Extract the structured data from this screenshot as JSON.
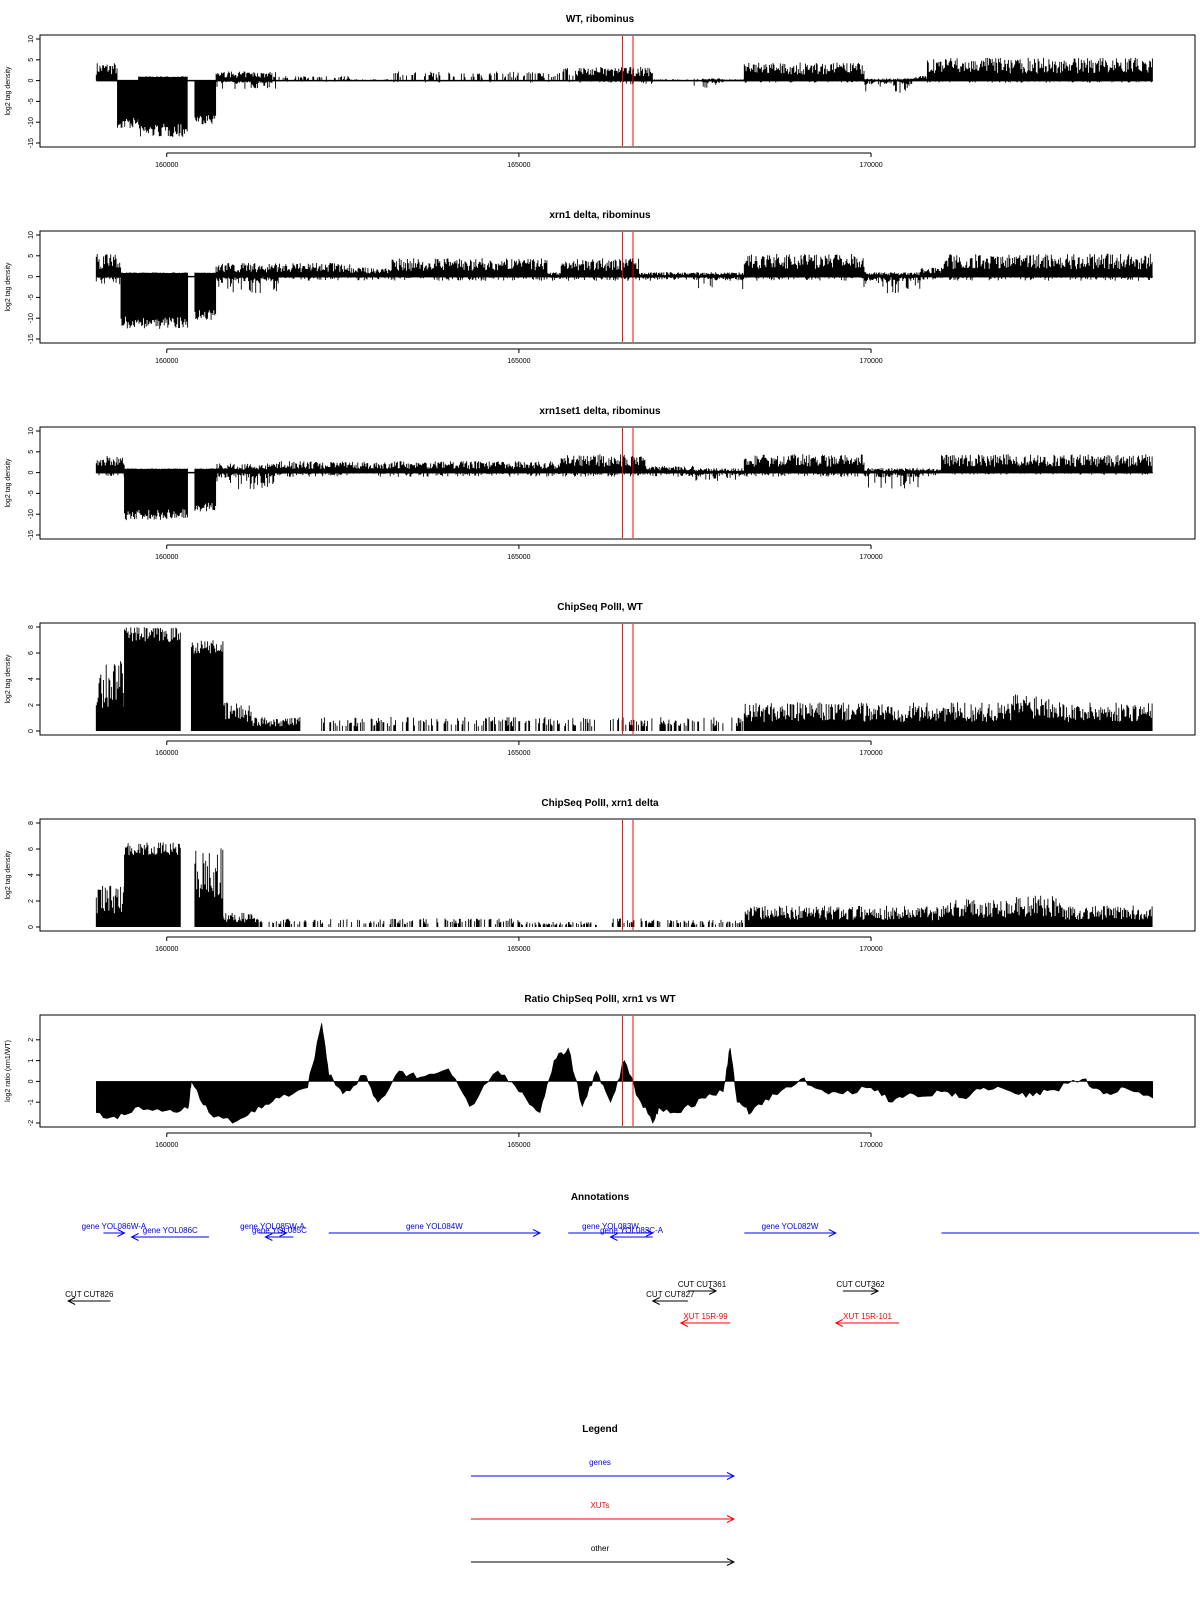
{
  "chart_data": [
    {
      "type": "bar",
      "title": "WT, ribominus",
      "ylabel": "log2 tag density",
      "ylim": [
        -15,
        10
      ],
      "yticks": [
        10,
        5,
        0,
        -5,
        -10,
        -15
      ],
      "xlim": [
        158200,
        174600
      ],
      "xticks": [
        160000,
        165000,
        170000
      ],
      "markers": [
        166470,
        166620
      ],
      "profile": {
        "pos": [
          [
            159000,
            159300,
            4,
            0
          ],
          [
            159300,
            159600,
            0,
            -11
          ],
          [
            159600,
            160300,
            1,
            -13
          ],
          [
            160300,
            160400,
            0,
            0
          ],
          [
            160400,
            160700,
            0,
            -10
          ],
          [
            160700,
            161600,
            2,
            -2
          ],
          [
            161600,
            162600,
            1,
            -0.5
          ],
          [
            162600,
            163200,
            0.3,
            0
          ],
          [
            163200,
            165600,
            2,
            -0.5
          ],
          [
            165600,
            166500,
            3,
            -0.5
          ],
          [
            166500,
            166900,
            3,
            -1
          ],
          [
            166900,
            167400,
            0.3,
            0
          ],
          [
            167400,
            167900,
            0.5,
            -2
          ],
          [
            167900,
            168200,
            0.3,
            0
          ],
          [
            168200,
            169900,
            4,
            -0.5
          ],
          [
            169900,
            170600,
            0.5,
            -3
          ],
          [
            170600,
            170800,
            1,
            0
          ],
          [
            170800,
            174000,
            5,
            -0.5
          ]
        ],
        "sparse": [
          [
            161500,
            165800
          ],
          [
            166900,
            167600
          ]
        ]
      }
    },
    {
      "type": "bar",
      "title": "xrn1 delta, ribominus",
      "ylabel": "log2 tag density",
      "ylim": [
        -15,
        10
      ],
      "yticks": [
        10,
        5,
        0,
        -5,
        -10,
        -15
      ],
      "xlim": [
        158200,
        174600
      ],
      "xticks": [
        160000,
        165000,
        170000
      ],
      "markers": [
        166470,
        166620
      ],
      "profile": {
        "pos": [
          [
            159000,
            159350,
            5,
            -2
          ],
          [
            159350,
            160300,
            1,
            -12
          ],
          [
            160300,
            160400,
            0,
            0
          ],
          [
            160400,
            160700,
            1,
            -10
          ],
          [
            160700,
            161600,
            3,
            -4
          ],
          [
            161600,
            162600,
            3,
            -1
          ],
          [
            162600,
            163200,
            2,
            -1
          ],
          [
            163200,
            165400,
            4,
            -1
          ],
          [
            165400,
            165600,
            1,
            -1
          ],
          [
            165600,
            166700,
            4,
            -1
          ],
          [
            166700,
            167500,
            1,
            -1
          ],
          [
            167500,
            168200,
            1,
            -3
          ],
          [
            168200,
            169900,
            5,
            -1
          ],
          [
            169900,
            170700,
            1,
            -4
          ],
          [
            170700,
            171000,
            2,
            -1
          ],
          [
            171000,
            174000,
            5,
            -1
          ]
        ],
        "sparse": []
      }
    },
    {
      "type": "bar",
      "title": "xrn1set1 delta, ribominus",
      "ylabel": "log2 tag density",
      "ylim": [
        -15,
        10
      ],
      "yticks": [
        10,
        5,
        0,
        -5,
        -10,
        -15
      ],
      "xlim": [
        158200,
        174600
      ],
      "xticks": [
        160000,
        165000,
        170000
      ],
      "markers": [
        166470,
        166620
      ],
      "profile": {
        "pos": [
          [
            159000,
            159400,
            4,
            -1
          ],
          [
            159400,
            160300,
            1,
            -11
          ],
          [
            160300,
            160400,
            0,
            0
          ],
          [
            160400,
            160700,
            1,
            -9
          ],
          [
            160700,
            161600,
            2,
            -4
          ],
          [
            161600,
            165600,
            2.5,
            -1
          ],
          [
            165600,
            166800,
            4,
            -1
          ],
          [
            166800,
            167500,
            1.5,
            -1
          ],
          [
            167500,
            168200,
            1,
            -2
          ],
          [
            168200,
            169900,
            4,
            -1
          ],
          [
            169900,
            170700,
            1,
            -4
          ],
          [
            170700,
            171000,
            1,
            -1
          ],
          [
            171000,
            174000,
            4,
            -0.5
          ]
        ],
        "sparse": []
      }
    },
    {
      "type": "bar",
      "title": "ChipSeq PolII, WT",
      "ylabel": "log2 tag density",
      "ylim": [
        0,
        8
      ],
      "yticks": [
        8,
        6,
        4,
        2,
        0
      ],
      "xlim": [
        158200,
        174600
      ],
      "xticks": [
        160000,
        165000,
        170000
      ],
      "markers": [
        166470,
        166620
      ],
      "profile": {
        "pos": [
          [
            159000,
            159400,
            5,
            0
          ],
          [
            159400,
            160200,
            8,
            0
          ],
          [
            160200,
            160350,
            0,
            0
          ],
          [
            160350,
            160800,
            7,
            0
          ],
          [
            160800,
            161200,
            2,
            0
          ],
          [
            161200,
            161900,
            1,
            0
          ],
          [
            161900,
            162200,
            0,
            0
          ],
          [
            162200,
            166100,
            1,
            0
          ],
          [
            166100,
            166300,
            0,
            0
          ],
          [
            166300,
            166900,
            1,
            0
          ],
          [
            166900,
            167500,
            1,
            0
          ],
          [
            167500,
            168200,
            1,
            0
          ],
          [
            168200,
            172000,
            2,
            0
          ],
          [
            172000,
            172700,
            2.7,
            0
          ],
          [
            172700,
            174000,
            2,
            0
          ]
        ],
        "sparse": [
          [
            162200,
            168200
          ]
        ]
      }
    },
    {
      "type": "bar",
      "title": "ChipSeq PolII, xrn1 delta",
      "ylabel": "log2 tag density",
      "ylim": [
        0,
        8
      ],
      "yticks": [
        8,
        6,
        4,
        2,
        0
      ],
      "xlim": [
        158200,
        174600
      ],
      "xticks": [
        160000,
        165000,
        170000
      ],
      "markers": [
        166470,
        166620
      ],
      "profile": {
        "pos": [
          [
            159000,
            159400,
            3,
            0
          ],
          [
            159400,
            160200,
            6.5,
            0
          ],
          [
            160200,
            160400,
            0,
            0
          ],
          [
            160400,
            160800,
            5.5,
            0
          ],
          [
            160800,
            161300,
            1,
            0
          ],
          [
            161300,
            162200,
            0.6,
            0
          ],
          [
            162200,
            165000,
            0.6,
            0
          ],
          [
            165000,
            166100,
            0.4,
            0
          ],
          [
            166100,
            166300,
            0,
            0
          ],
          [
            166300,
            167000,
            0.6,
            0
          ],
          [
            167000,
            168200,
            0.5,
            0
          ],
          [
            168200,
            171000,
            1.5,
            0
          ],
          [
            171000,
            172000,
            2,
            0
          ],
          [
            172000,
            172700,
            2.2,
            0
          ],
          [
            172700,
            174000,
            1.5,
            0
          ]
        ],
        "sparse": [
          [
            161300,
            168200
          ]
        ]
      }
    },
    {
      "type": "area",
      "title": "Ratio ChipSeq PolII, xrn1 vs WT",
      "ylabel": "log2 ratio (xrn1/WT)",
      "ylim": [
        -2,
        3
      ],
      "yticks": [
        2,
        1,
        0,
        -1,
        -2
      ],
      "xlim": [
        158200,
        174600
      ],
      "xticks": [
        160000,
        165000,
        170000
      ],
      "markers": [
        166470,
        166620
      ],
      "x": [
        159000,
        159300,
        159600,
        160000,
        160300,
        160350,
        160600,
        161000,
        161300,
        161600,
        162000,
        162200,
        162300,
        162500,
        162800,
        163000,
        163300,
        163600,
        164000,
        164300,
        164700,
        165000,
        165300,
        165500,
        165700,
        165900,
        166100,
        166300,
        166500,
        166700,
        166900,
        167000,
        167300,
        167600,
        167900,
        168000,
        168100,
        168300,
        168600,
        169000,
        169300,
        169600,
        170000,
        170300,
        170600,
        171000,
        171300,
        171600,
        172000,
        172300,
        172600,
        173000,
        173300,
        173600,
        174000
      ],
      "y": [
        -1.5,
        -1.8,
        -1.2,
        -1.4,
        -1.3,
        0,
        -1.5,
        -1.9,
        -1.2,
        -0.8,
        -0.3,
        2.8,
        0.3,
        -0.6,
        0.3,
        -1.0,
        0.5,
        0.2,
        0.6,
        -1.2,
        0.5,
        -0.5,
        -1.5,
        1.0,
        1.6,
        -1.2,
        0.5,
        -1.0,
        1.0,
        -0.8,
        -2.0,
        -1.3,
        -1.5,
        -0.8,
        -0.5,
        1.6,
        -1.0,
        -1.5,
        -0.6,
        0.1,
        -0.4,
        -0.6,
        -0.3,
        -1.0,
        -0.6,
        -0.5,
        -0.8,
        -0.3,
        -0.5,
        -0.7,
        -0.4,
        0.1,
        -0.6,
        -0.3,
        -0.8
      ]
    }
  ],
  "annotations": {
    "title": "Annotations",
    "items": [
      {
        "label": "gene YOL086W-A",
        "color": "#0000ff",
        "from": 159100,
        "to": 159400,
        "dir": "right",
        "row": 0
      },
      {
        "label": "gene YOL086C",
        "color": "#0000ff",
        "from": 160600,
        "to": 159500,
        "dir": "left",
        "row": 1
      },
      {
        "label": "gene YOL085W-A",
        "color": "#0000ff",
        "from": 161300,
        "to": 161700,
        "dir": "right",
        "row": 0
      },
      {
        "label": "gene YOL085C",
        "color": "#0000ff",
        "from": 161800,
        "to": 161400,
        "dir": "left",
        "row": 1
      },
      {
        "label": "gene YOL084W",
        "color": "#0000ff",
        "from": 162300,
        "to": 165300,
        "dir": "right",
        "row": 0
      },
      {
        "label": "gene YOL083W",
        "color": "#0000ff",
        "from": 165700,
        "to": 166900,
        "dir": "right",
        "row": 0
      },
      {
        "label": "gene YOL083C-A",
        "color": "#0000ff",
        "from": 166900,
        "to": 166300,
        "dir": "left",
        "row": 1
      },
      {
        "label": "gene YOL082W",
        "color": "#0000ff",
        "from": 168200,
        "to": 169500,
        "dir": "right",
        "row": 0
      },
      {
        "label": "",
        "color": "#0000ff",
        "from": 171000,
        "to": 175400,
        "dir": "none",
        "row": 0
      },
      {
        "label": "CUT CUT826",
        "color": "#000000",
        "from": 159200,
        "to": 158600,
        "dir": "left",
        "row": 3
      },
      {
        "label": "CUT CUT361",
        "color": "#000000",
        "from": 167400,
        "to": 167800,
        "dir": "right",
        "row": 2
      },
      {
        "label": "CUT CUT827",
        "color": "#000000",
        "from": 167400,
        "to": 166900,
        "dir": "left",
        "row": 3
      },
      {
        "label": "CUT CUT362",
        "color": "#000000",
        "from": 169600,
        "to": 170100,
        "dir": "right",
        "row": 2
      },
      {
        "label": "XUT 15R-99",
        "color": "#ff0000",
        "from": 168000,
        "to": 167300,
        "dir": "left",
        "row": 4
      },
      {
        "label": "XUT 15R-101",
        "color": "#ff0000",
        "from": 170400,
        "to": 169500,
        "dir": "left",
        "row": 4
      }
    ]
  },
  "legend": {
    "title": "Legend",
    "items": [
      {
        "label": "genes",
        "color": "#0000ff"
      },
      {
        "label": "XUTs",
        "color": "#ff0000"
      },
      {
        "label": "other",
        "color": "#000000"
      }
    ]
  }
}
